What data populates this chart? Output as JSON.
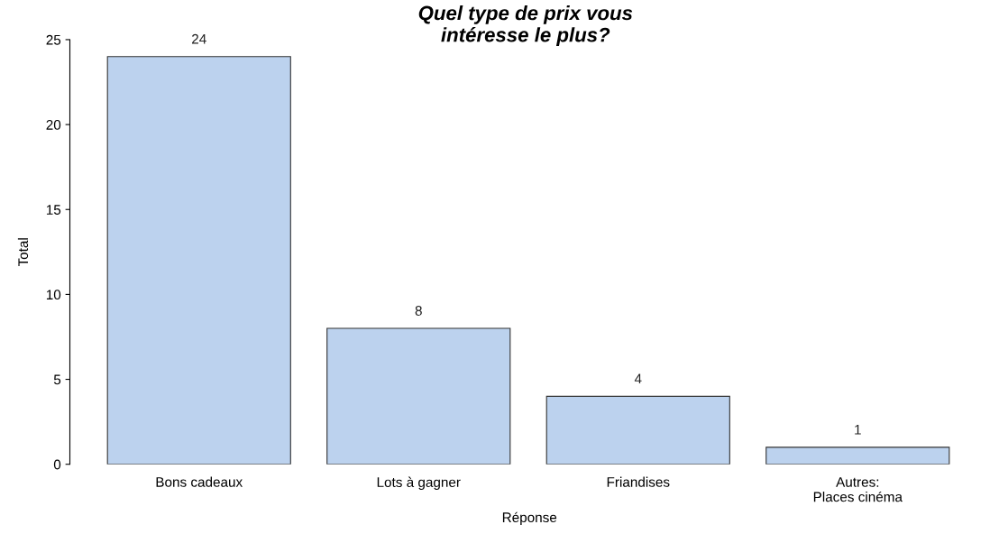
{
  "chart_data": {
    "type": "bar",
    "title": "Quel type de prix vous\nintéresse le plus?",
    "xlabel": "Réponse",
    "ylabel": "Total",
    "categories": [
      "Bons cadeaux",
      "Lots à gagner",
      "Friandises",
      "Autres:\nPlaces cinéma"
    ],
    "values": [
      24,
      8,
      4,
      1
    ],
    "color": "#bcd2ee",
    "ylim": [
      0,
      25
    ],
    "yticks": [
      0,
      5,
      10,
      15,
      20,
      25
    ],
    "data_labels": true,
    "grid": false,
    "legend": false
  }
}
